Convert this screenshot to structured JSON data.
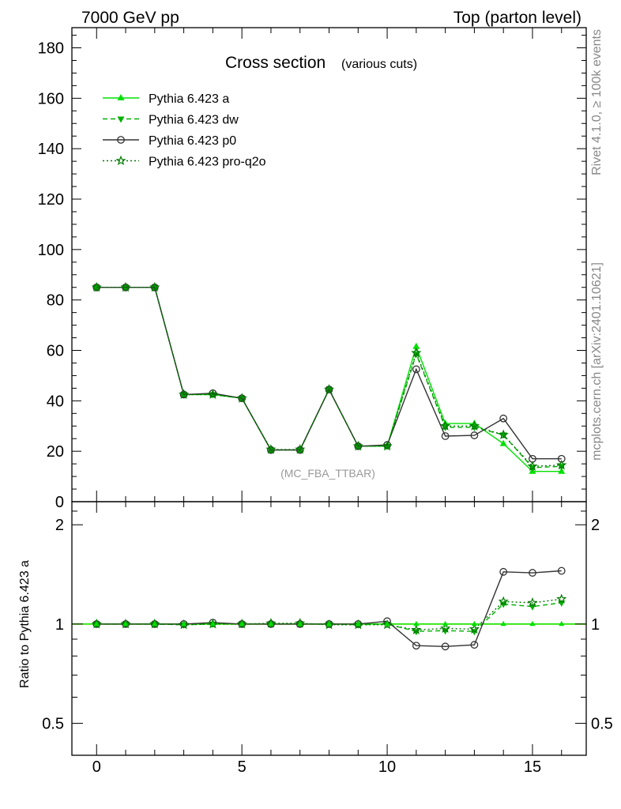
{
  "header": {
    "left_title": "7000 GeV pp",
    "right_title": "Top (parton level)"
  },
  "side_text": {
    "rivet": "Rivet 4.1.0, ≥ 100k events",
    "mcplots": "mcplots.cern.ch [arXiv:2401.10621]"
  },
  "chart_data": {
    "type": "line",
    "title": "Cross section",
    "subtitle": "(various cuts)",
    "watermark": "(MC_FBA_TTBAR)",
    "x": [
      0,
      1,
      2,
      3,
      4,
      5,
      6,
      7,
      8,
      9,
      10,
      11,
      12,
      13,
      14,
      15,
      16
    ],
    "xlim": [
      -0.85,
      16.85
    ],
    "xticks": [
      0,
      5,
      10,
      15
    ],
    "xtick_labels": [
      "0",
      "5",
      "10",
      "15"
    ],
    "ylim": [
      0,
      188
    ],
    "yticks": [
      0,
      20,
      40,
      60,
      80,
      100,
      120,
      140,
      160,
      180
    ],
    "ytick_labels": [
      "0",
      "20",
      "40",
      "60",
      "80",
      "100",
      "120",
      "140",
      "160",
      "180"
    ],
    "series": [
      {
        "name": "Pythia 6.423 a",
        "color": "#00e000",
        "dash": "solid",
        "marker": "triangle-up",
        "values": [
          85,
          85,
          85,
          42.5,
          42.5,
          41,
          20.5,
          20.5,
          44.5,
          22,
          22,
          61.5,
          31,
          31,
          23,
          12,
          12
        ]
      },
      {
        "name": "Pythia 6.423 dw",
        "color": "#00b000",
        "dash": "dashed",
        "marker": "triangle-down",
        "values": [
          85,
          85,
          85,
          42.5,
          42.5,
          41,
          20.5,
          20.5,
          44.5,
          22,
          22,
          58.5,
          29.5,
          29.5,
          26.5,
          13.5,
          14
        ]
      },
      {
        "name": "Pythia 6.423 p0",
        "color": "#333333",
        "dash": "solid",
        "marker": "circle-open",
        "values": [
          85,
          85,
          85,
          42.5,
          43,
          41,
          20.5,
          20.5,
          44.5,
          22,
          22.5,
          52.5,
          26,
          26.3,
          33,
          17,
          17
        ]
      },
      {
        "name": "Pythia 6.423 pro-q2o",
        "color": "#007a00",
        "dash": "dotted",
        "marker": "star",
        "values": [
          85,
          85,
          85,
          42.5,
          42.5,
          41,
          20.7,
          20.7,
          44.5,
          22,
          22,
          59,
          30,
          30,
          26.5,
          14,
          14.5
        ]
      }
    ],
    "ratio": {
      "ylabel": "Ratio to Pythia 6.423 a",
      "ylim": [
        0.4,
        2.35
      ],
      "yticks_major": [
        0.5,
        1,
        2
      ],
      "ytick_labels": [
        "0.5",
        "1",
        "2"
      ],
      "band_color": "#ffff66",
      "series": [
        {
          "name": "Pythia 6.423 a",
          "values": [
            1,
            1,
            1,
            1,
            1,
            1,
            1,
            1,
            1,
            1,
            1,
            1,
            1,
            1,
            1,
            1,
            1
          ]
        },
        {
          "name": "Pythia 6.423 dw",
          "values": [
            1.0,
            1.0,
            1.0,
            0.995,
            1.0,
            1.0,
            1.0,
            1.0,
            1.0,
            0.995,
            1.0,
            0.95,
            0.955,
            0.95,
            1.15,
            1.13,
            1.16
          ]
        },
        {
          "name": "Pythia 6.423 p0",
          "values": [
            1.0,
            1.0,
            1.0,
            1.0,
            1.01,
            1.0,
            1.0,
            1.0,
            1.0,
            1.0,
            1.02,
            0.86,
            0.855,
            0.865,
            1.44,
            1.43,
            1.45
          ]
        },
        {
          "name": "Pythia 6.423 pro-q2o",
          "values": [
            1.0,
            1.0,
            1.0,
            0.995,
            1.0,
            1.0,
            1.005,
            1.005,
            0.995,
            0.995,
            0.995,
            0.96,
            0.97,
            0.965,
            1.17,
            1.16,
            1.19
          ]
        }
      ]
    }
  }
}
